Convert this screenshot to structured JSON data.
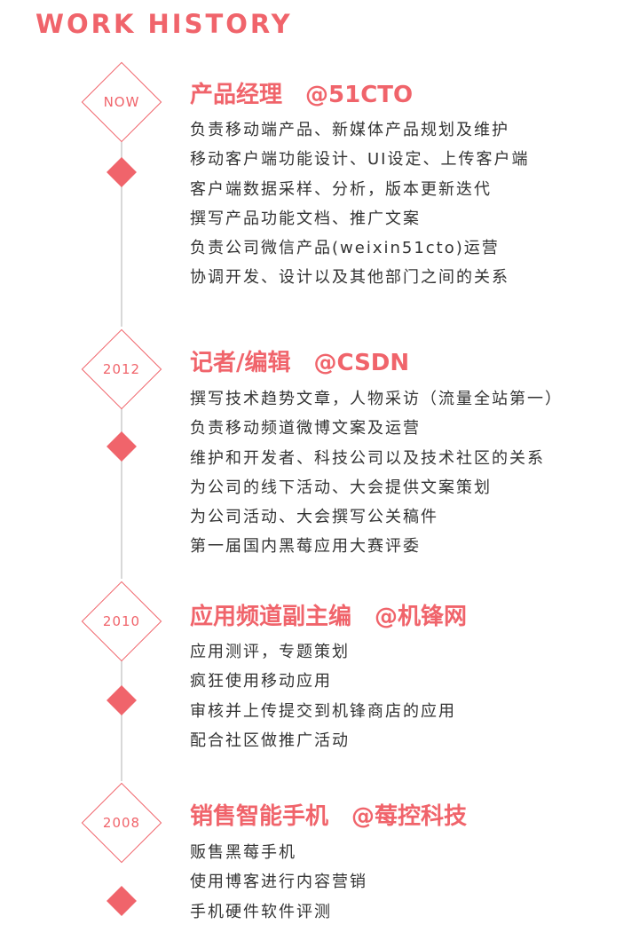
{
  "heading": "WORK HISTORY",
  "colors": {
    "accent": "#f0646b",
    "text": "#333333",
    "line": "#d8d8d8"
  },
  "entries": [
    {
      "year": "NOW",
      "role": "产品经理",
      "company": "@51CTO",
      "items": [
        "负责移动端产品、新媒体产品规划及维护",
        "移动客户端功能设计、UI设定、上传客户端",
        "客户端数据采样、分析，版本更新迭代",
        "撰写产品功能文档、推广文案",
        "负责公司微信产品(weixin51cto)运营",
        "协调开发、设计以及其他部门之间的关系"
      ]
    },
    {
      "year": "2012",
      "role": "记者/编辑",
      "company": "@CSDN",
      "items": [
        "撰写技术趋势文章，人物采访（流量全站第一）",
        "负责移动频道微博文案及运营",
        "维护和开发者、科技公司以及技术社区的关系",
        "为公司的线下活动、大会提供文案策划",
        "为公司活动、大会撰写公关稿件",
        "第一届国内黑莓应用大赛评委"
      ]
    },
    {
      "year": "2010",
      "role": "应用频道副主编",
      "company": "@机锋网",
      "items": [
        "应用测评，专题策划",
        "疯狂使用移动应用",
        "审核并上传提交到机锋商店的应用",
        "配合社区做推广活动"
      ]
    },
    {
      "year": "2008",
      "role": "销售智能手机",
      "company": "@莓控科技",
      "items": [
        "贩售黑莓手机",
        "使用博客进行内容营销",
        "手机硬件软件评测"
      ]
    }
  ]
}
